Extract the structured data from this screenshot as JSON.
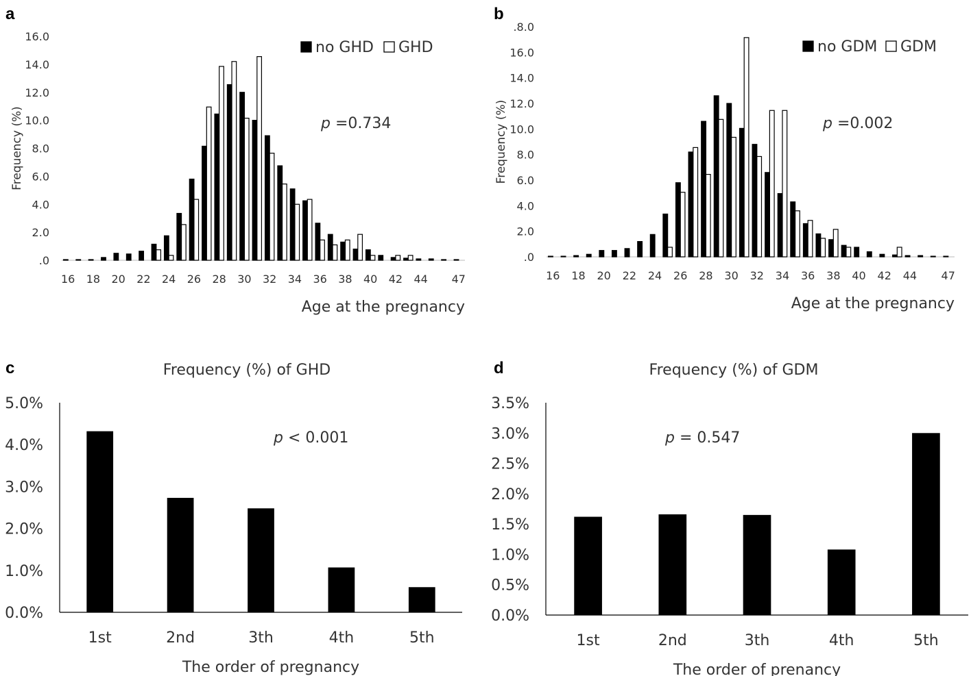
{
  "chart_data": [
    {
      "panel": "a",
      "type": "bar",
      "xlabel": "Age at the pregnancy",
      "ylabel": "Frequency (%)",
      "ylim": [
        0,
        16
      ],
      "yticks": [
        ".0",
        "2.0",
        "4.0",
        "6.0",
        "8.0",
        "10.0",
        "12.0",
        "14.0",
        "16.0"
      ],
      "annotation": {
        "italic": "p",
        "text": " =0.734"
      },
      "legend": {
        "position": "top-right"
      },
      "categories": [
        16,
        17,
        18,
        19,
        20,
        21,
        22,
        23,
        24,
        25,
        26,
        27,
        28,
        29,
        30,
        31,
        32,
        33,
        34,
        35,
        36,
        37,
        38,
        39,
        40,
        41,
        42,
        43,
        44,
        45,
        46,
        47
      ],
      "xtick_labels": [
        "16",
        "18",
        "20",
        "22",
        "24",
        "26",
        "28",
        "30",
        "32",
        "34",
        "36",
        "38",
        "40",
        "42",
        "44",
        "47"
      ],
      "xtick_categories": [
        16,
        18,
        20,
        22,
        24,
        26,
        28,
        30,
        32,
        34,
        36,
        38,
        40,
        42,
        44,
        47
      ],
      "series": [
        {
          "name": "no GHD",
          "color": "#000000",
          "values": [
            0.05,
            0.05,
            0.05,
            0.2,
            0.5,
            0.45,
            0.65,
            1.15,
            1.75,
            3.35,
            5.8,
            8.15,
            10.45,
            12.55,
            12.0,
            10.0,
            8.9,
            6.75,
            5.1,
            4.25,
            2.65,
            1.85,
            1.3,
            0.8,
            0.75,
            0.35,
            0.2,
            0.15,
            0.1,
            0.1,
            0.05,
            0.05
          ]
        },
        {
          "name": "GHD",
          "color": "#ffffff",
          "values": [
            0,
            0,
            0,
            0,
            0,
            0,
            0,
            0.75,
            0.35,
            2.55,
            4.35,
            10.95,
            13.85,
            14.2,
            10.15,
            14.55,
            7.65,
            5.45,
            4.0,
            4.35,
            1.45,
            1.1,
            1.45,
            1.85,
            0.35,
            0,
            0.35,
            0.35,
            0,
            0,
            0,
            0
          ]
        }
      ]
    },
    {
      "panel": "b",
      "type": "bar",
      "xlabel": "Age at the pregnancy",
      "ylabel": "Frequency (%)",
      "ylim": [
        0,
        18
      ],
      "yticks": [
        ".0",
        "2.0",
        "4.0",
        "6.0",
        "8.0",
        "10.0",
        "12.0",
        "14.0",
        "16.0",
        ".8.0"
      ],
      "annotation": {
        "italic": "p",
        "text": " =0.002"
      },
      "legend": {
        "position": "top-right"
      },
      "categories": [
        16,
        17,
        18,
        19,
        20,
        21,
        22,
        23,
        24,
        25,
        26,
        27,
        28,
        29,
        30,
        31,
        32,
        33,
        34,
        35,
        36,
        37,
        38,
        39,
        40,
        41,
        42,
        43,
        44,
        45,
        46,
        47
      ],
      "xtick_labels": [
        "16",
        "18",
        "20",
        "22",
        "24",
        "26",
        "28",
        "30",
        "32",
        "34",
        "36",
        "38",
        "40",
        "42",
        "44",
        "47"
      ],
      "xtick_categories": [
        16,
        18,
        20,
        22,
        24,
        26,
        28,
        30,
        32,
        34,
        36,
        38,
        40,
        42,
        44,
        47
      ],
      "series": [
        {
          "name": "no GDM",
          "color": "#000000",
          "values": [
            0.05,
            0.05,
            0.1,
            0.2,
            0.5,
            0.5,
            0.65,
            1.2,
            1.75,
            3.35,
            5.8,
            8.2,
            10.6,
            12.6,
            12.0,
            10.05,
            8.8,
            6.6,
            4.95,
            4.3,
            2.6,
            1.8,
            1.35,
            0.9,
            0.75,
            0.4,
            0.2,
            0.15,
            0.1,
            0.1,
            0.05,
            0.05
          ]
        },
        {
          "name": "GDM",
          "color": "#ffffff",
          "values": [
            0,
            0,
            0,
            0,
            0,
            0,
            0,
            0,
            0,
            0.75,
            5.05,
            8.55,
            6.45,
            10.75,
            9.35,
            17.15,
            7.85,
            11.45,
            11.45,
            3.6,
            2.85,
            1.45,
            2.15,
            0.75,
            0,
            0,
            0,
            0.75,
            0,
            0,
            0,
            0
          ]
        }
      ]
    },
    {
      "panel": "c",
      "type": "bar",
      "title": "Frequency (%) of GHD",
      "xlabel": "The order of pregnancy",
      "ylabel": "",
      "ylim": [
        0,
        5
      ],
      "yticks": [
        "0.0%",
        "1.0%",
        "2.0%",
        "3.0%",
        "4.0%",
        "5.0%"
      ],
      "annotation": {
        "italic": "p",
        "text": " < 0.001"
      },
      "categories": [
        "1st",
        "2nd",
        "3th",
        "4th",
        "5th"
      ],
      "values": [
        4.32,
        2.73,
        2.48,
        1.07,
        0.6
      ],
      "color": "#000000"
    },
    {
      "panel": "d",
      "type": "bar",
      "title": "Frequency (%) of GDM",
      "xlabel": "The order of prenancy",
      "ylabel": "",
      "ylim": [
        0,
        3.5
      ],
      "yticks": [
        "0.0%",
        "0.5%",
        "1.0%",
        "1.5%",
        "2.0%",
        "2.5%",
        "3.0%",
        "3.5%"
      ],
      "annotation": {
        "italic": "p",
        "text": " = 0.547"
      },
      "categories": [
        "1st",
        "2nd",
        "3th",
        "4th",
        "5th"
      ],
      "values": [
        1.62,
        1.66,
        1.65,
        1.08,
        3.0
      ],
      "color": "#000000"
    }
  ]
}
